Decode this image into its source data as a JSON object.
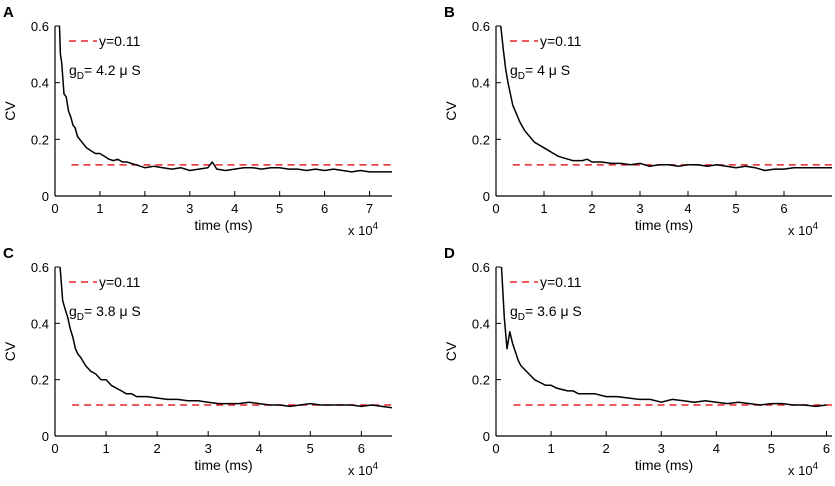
{
  "chart_data": [
    {
      "panel": "A",
      "type": "line",
      "ylabel": "CV",
      "xlabel": "time (ms)",
      "x_multiplier_label": "x 10",
      "x_multiplier_exp": "4",
      "xlim": [
        0,
        7.5
      ],
      "ylim": [
        0,
        0.6
      ],
      "xticks": [
        "0",
        "1",
        "2",
        "3",
        "4",
        "5",
        "6",
        "7"
      ],
      "yticks": [
        "0",
        "0.2",
        "0.4",
        "0.6"
      ],
      "legend_line": "y=0.11",
      "g_prefix": "g",
      "g_sub": "D",
      "g_value": "= 4.2 μ S",
      "reference_y": 0.11,
      "series": [
        {
          "name": "CV",
          "color": "#000000",
          "x": [
            0.1,
            0.12,
            0.15,
            0.2,
            0.25,
            0.3,
            0.35,
            0.4,
            0.45,
            0.5,
            0.55,
            0.6,
            0.7,
            0.8,
            0.9,
            1.0,
            1.1,
            1.2,
            1.3,
            1.4,
            1.5,
            1.6,
            1.8,
            2.0,
            2.2,
            2.4,
            2.6,
            2.8,
            3.0,
            3.2,
            3.4,
            3.5,
            3.6,
            3.8,
            4.0,
            4.2,
            4.4,
            4.6,
            4.8,
            5.0,
            5.2,
            5.4,
            5.6,
            5.8,
            6.0,
            6.2,
            6.4,
            6.6,
            6.8,
            7.0,
            7.2,
            7.5
          ],
          "y": [
            0.6,
            0.5,
            0.47,
            0.36,
            0.35,
            0.3,
            0.28,
            0.25,
            0.24,
            0.21,
            0.2,
            0.19,
            0.17,
            0.16,
            0.15,
            0.15,
            0.14,
            0.13,
            0.125,
            0.13,
            0.12,
            0.12,
            0.11,
            0.1,
            0.105,
            0.1,
            0.095,
            0.1,
            0.09,
            0.095,
            0.1,
            0.12,
            0.095,
            0.09,
            0.095,
            0.1,
            0.1,
            0.095,
            0.1,
            0.1,
            0.095,
            0.095,
            0.09,
            0.095,
            0.09,
            0.095,
            0.09,
            0.085,
            0.09,
            0.085,
            0.085,
            0.085
          ]
        }
      ]
    },
    {
      "panel": "B",
      "type": "line",
      "ylabel": "CV",
      "xlabel": "time (ms)",
      "x_multiplier_label": "x 10",
      "x_multiplier_exp": "4",
      "xlim": [
        0,
        7
      ],
      "ylim": [
        0,
        0.6
      ],
      "xticks": [
        "0",
        "1",
        "2",
        "3",
        "4",
        "5",
        "6"
      ],
      "yticks": [
        "0",
        "0.2",
        "0.4",
        "0.6"
      ],
      "legend_line": "y=0.11",
      "g_prefix": "g",
      "g_sub": "D",
      "g_value": "= 4 μ S",
      "reference_y": 0.11,
      "series": [
        {
          "name": "CV",
          "color": "#000000",
          "x": [
            0.1,
            0.15,
            0.2,
            0.25,
            0.3,
            0.35,
            0.4,
            0.45,
            0.5,
            0.6,
            0.7,
            0.8,
            0.9,
            1.0,
            1.1,
            1.2,
            1.3,
            1.4,
            1.5,
            1.6,
            1.8,
            1.9,
            2.0,
            2.2,
            2.4,
            2.6,
            2.8,
            3.0,
            3.2,
            3.4,
            3.6,
            3.8,
            4.0,
            4.2,
            4.4,
            4.6,
            4.8,
            5.0,
            5.2,
            5.4,
            5.6,
            5.8,
            6.0,
            6.2,
            6.4,
            6.6,
            7.0
          ],
          "y": [
            0.6,
            0.52,
            0.45,
            0.4,
            0.36,
            0.32,
            0.3,
            0.28,
            0.26,
            0.23,
            0.21,
            0.19,
            0.18,
            0.17,
            0.16,
            0.15,
            0.14,
            0.135,
            0.13,
            0.125,
            0.125,
            0.13,
            0.12,
            0.12,
            0.115,
            0.115,
            0.11,
            0.115,
            0.105,
            0.11,
            0.11,
            0.105,
            0.11,
            0.11,
            0.105,
            0.11,
            0.105,
            0.1,
            0.105,
            0.1,
            0.09,
            0.095,
            0.095,
            0.1,
            0.1,
            0.1,
            0.1
          ]
        }
      ]
    },
    {
      "panel": "C",
      "type": "line",
      "ylabel": "CV",
      "xlabel": "time (ms)",
      "x_multiplier_label": "x 10",
      "x_multiplier_exp": "4",
      "xlim": [
        0,
        6.6
      ],
      "ylim": [
        0,
        0.6
      ],
      "xticks": [
        "0",
        "1",
        "2",
        "3",
        "4",
        "5",
        "6"
      ],
      "yticks": [
        "0",
        "0.2",
        "0.4",
        "0.6"
      ],
      "legend_line": "y=0.11",
      "g_prefix": "g",
      "g_sub": "D",
      "g_value": "= 3.8 μ S",
      "reference_y": 0.11,
      "series": [
        {
          "name": "CV",
          "color": "#000000",
          "x": [
            0.1,
            0.15,
            0.2,
            0.25,
            0.3,
            0.35,
            0.4,
            0.45,
            0.5,
            0.6,
            0.7,
            0.8,
            0.9,
            1.0,
            1.1,
            1.2,
            1.3,
            1.4,
            1.5,
            1.6,
            1.8,
            2.0,
            2.2,
            2.4,
            2.6,
            2.8,
            3.0,
            3.2,
            3.4,
            3.6,
            3.8,
            4.0,
            4.2,
            4.4,
            4.6,
            4.8,
            5.0,
            5.2,
            5.4,
            5.6,
            5.8,
            6.0,
            6.2,
            6.4,
            6.6
          ],
          "y": [
            0.6,
            0.48,
            0.45,
            0.42,
            0.38,
            0.35,
            0.31,
            0.29,
            0.28,
            0.25,
            0.23,
            0.22,
            0.2,
            0.2,
            0.18,
            0.17,
            0.16,
            0.15,
            0.15,
            0.14,
            0.14,
            0.135,
            0.13,
            0.13,
            0.125,
            0.125,
            0.12,
            0.115,
            0.115,
            0.115,
            0.12,
            0.115,
            0.11,
            0.11,
            0.105,
            0.11,
            0.115,
            0.11,
            0.11,
            0.11,
            0.11,
            0.105,
            0.11,
            0.105,
            0.1
          ]
        }
      ]
    },
    {
      "panel": "D",
      "type": "line",
      "ylabel": "CV",
      "xlabel": "time (ms)",
      "x_multiplier_label": "x 10",
      "x_multiplier_exp": "4",
      "xlim": [
        0,
        6.1
      ],
      "ylim": [
        0,
        0.6
      ],
      "xticks": [
        "0",
        "1",
        "2",
        "3",
        "4",
        "5",
        "6"
      ],
      "yticks": [
        "0",
        "0.2",
        "0.4",
        "0.6"
      ],
      "legend_line": "y=0.11",
      "g_prefix": "g",
      "g_sub": "D",
      "g_value": "= 3.6 μ S",
      "reference_y": 0.11,
      "series": [
        {
          "name": "CV",
          "color": "#000000",
          "x": [
            0.1,
            0.15,
            0.2,
            0.25,
            0.3,
            0.35,
            0.4,
            0.45,
            0.5,
            0.6,
            0.7,
            0.8,
            0.9,
            1.0,
            1.1,
            1.2,
            1.3,
            1.4,
            1.5,
            1.6,
            1.8,
            2.0,
            2.2,
            2.4,
            2.6,
            2.8,
            3.0,
            3.2,
            3.4,
            3.6,
            3.8,
            4.0,
            4.2,
            4.4,
            4.6,
            4.8,
            5.0,
            5.2,
            5.4,
            5.6,
            5.8,
            6.0
          ],
          "y": [
            0.6,
            0.42,
            0.31,
            0.37,
            0.33,
            0.3,
            0.27,
            0.25,
            0.24,
            0.22,
            0.2,
            0.19,
            0.18,
            0.18,
            0.17,
            0.165,
            0.16,
            0.16,
            0.15,
            0.15,
            0.15,
            0.14,
            0.14,
            0.135,
            0.13,
            0.13,
            0.12,
            0.13,
            0.125,
            0.12,
            0.125,
            0.12,
            0.115,
            0.12,
            0.115,
            0.11,
            0.115,
            0.115,
            0.11,
            0.11,
            0.105,
            0.11
          ]
        }
      ]
    }
  ],
  "colors": {
    "series": "#000000",
    "reference_line": "#e8222b",
    "axis": "#000000"
  }
}
